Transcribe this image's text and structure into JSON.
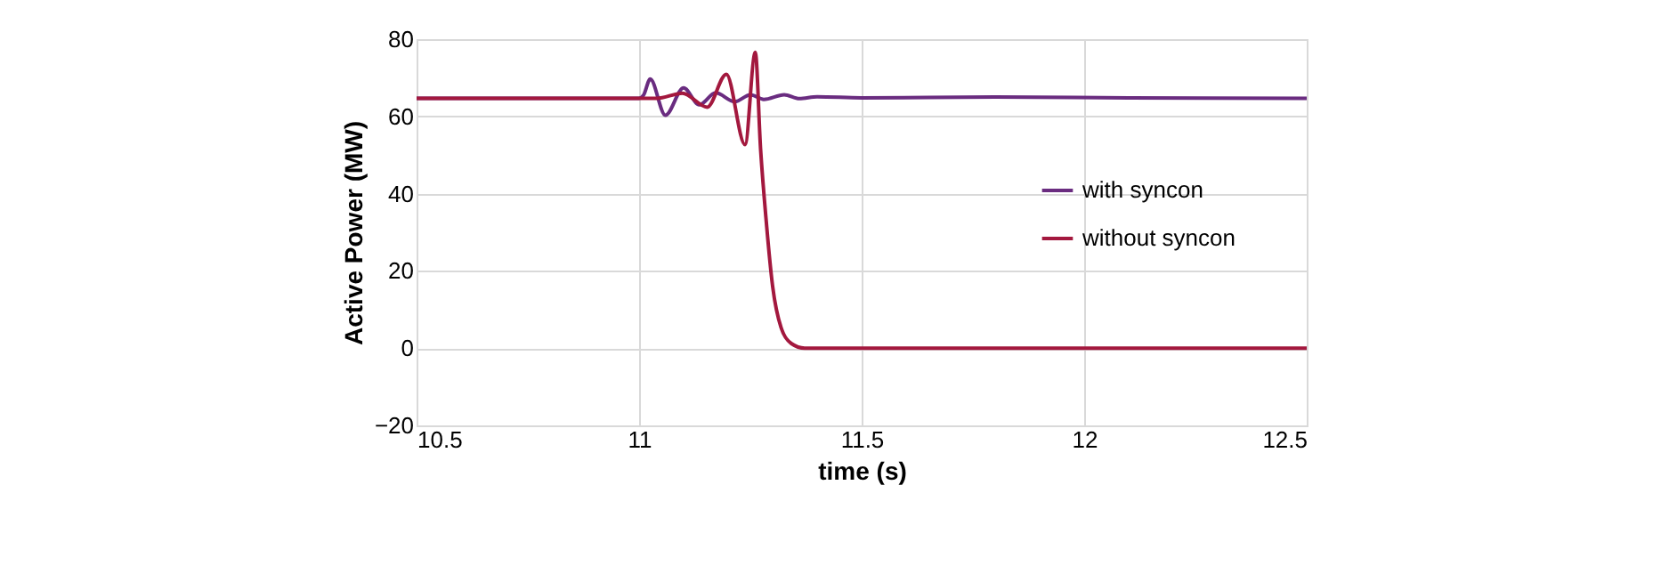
{
  "chart_data": {
    "type": "line",
    "xlabel": "time (s)",
    "ylabel": "Active Power (MW)",
    "xlim": [
      10.5,
      12.5
    ],
    "xticks": [
      10.5,
      11,
      11.5,
      12,
      12.5
    ],
    "ylim": [
      -20,
      80
    ],
    "yticks": [
      -20,
      0,
      20,
      40,
      60,
      80
    ],
    "grid": true,
    "legend": "right",
    "marker": "none",
    "line_style": "solid",
    "series": [
      {
        "name": "with syncon",
        "color": "#6a2c80",
        "x": [
          10.5,
          11.0,
          11.01,
          11.025,
          11.059,
          11.1,
          11.135,
          11.172,
          11.215,
          11.25,
          11.28,
          11.326,
          11.36,
          11.4,
          11.5,
          11.8,
          12.1,
          12.5
        ],
        "values": [
          64.7,
          64.7,
          65.5,
          69.7,
          60.3,
          67.4,
          63.0,
          66.1,
          63.8,
          65.6,
          64.4,
          65.6,
          64.6,
          65.1,
          64.8,
          65.0,
          64.8,
          64.7
        ]
      },
      {
        "name": "without syncon",
        "color": "#a3183e",
        "x": [
          10.5,
          11.04,
          11.097,
          11.153,
          11.196,
          11.238,
          11.261,
          11.273,
          11.285,
          11.3,
          11.319,
          11.342,
          11.372,
          11.5,
          12.5
        ],
        "values": [
          64.7,
          64.7,
          66.0,
          62.4,
          70.9,
          52.7,
          76.6,
          51.4,
          33.7,
          16.0,
          5.3,
          1.2,
          0,
          0,
          0
        ]
      }
    ]
  }
}
